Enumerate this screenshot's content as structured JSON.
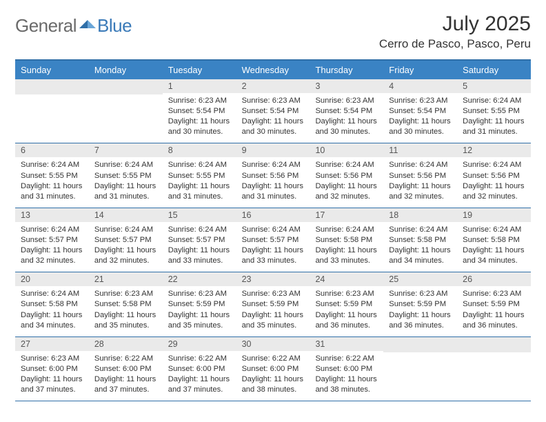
{
  "logo": {
    "text_general": "General",
    "text_blue": "Blue",
    "mark_fill_dark": "#2f6fa8",
    "mark_fill_light": "#6aa6d8"
  },
  "header": {
    "month_title": "July 2025",
    "location": "Cerro de Pasco, Pasco, Peru"
  },
  "colors": {
    "header_bar": "#3a83c4",
    "border": "#2f6fa8",
    "daynum_bg": "#eaeaea",
    "text": "#333333"
  },
  "weekdays": [
    "Sunday",
    "Monday",
    "Tuesday",
    "Wednesday",
    "Thursday",
    "Friday",
    "Saturday"
  ],
  "weeks": [
    [
      null,
      null,
      {
        "n": "1",
        "sunrise": "6:23 AM",
        "sunset": "5:54 PM",
        "daylight": "11 hours and 30 minutes."
      },
      {
        "n": "2",
        "sunrise": "6:23 AM",
        "sunset": "5:54 PM",
        "daylight": "11 hours and 30 minutes."
      },
      {
        "n": "3",
        "sunrise": "6:23 AM",
        "sunset": "5:54 PM",
        "daylight": "11 hours and 30 minutes."
      },
      {
        "n": "4",
        "sunrise": "6:23 AM",
        "sunset": "5:54 PM",
        "daylight": "11 hours and 30 minutes."
      },
      {
        "n": "5",
        "sunrise": "6:24 AM",
        "sunset": "5:55 PM",
        "daylight": "11 hours and 31 minutes."
      }
    ],
    [
      {
        "n": "6",
        "sunrise": "6:24 AM",
        "sunset": "5:55 PM",
        "daylight": "11 hours and 31 minutes."
      },
      {
        "n": "7",
        "sunrise": "6:24 AM",
        "sunset": "5:55 PM",
        "daylight": "11 hours and 31 minutes."
      },
      {
        "n": "8",
        "sunrise": "6:24 AM",
        "sunset": "5:55 PM",
        "daylight": "11 hours and 31 minutes."
      },
      {
        "n": "9",
        "sunrise": "6:24 AM",
        "sunset": "5:56 PM",
        "daylight": "11 hours and 31 minutes."
      },
      {
        "n": "10",
        "sunrise": "6:24 AM",
        "sunset": "5:56 PM",
        "daylight": "11 hours and 32 minutes."
      },
      {
        "n": "11",
        "sunrise": "6:24 AM",
        "sunset": "5:56 PM",
        "daylight": "11 hours and 32 minutes."
      },
      {
        "n": "12",
        "sunrise": "6:24 AM",
        "sunset": "5:56 PM",
        "daylight": "11 hours and 32 minutes."
      }
    ],
    [
      {
        "n": "13",
        "sunrise": "6:24 AM",
        "sunset": "5:57 PM",
        "daylight": "11 hours and 32 minutes."
      },
      {
        "n": "14",
        "sunrise": "6:24 AM",
        "sunset": "5:57 PM",
        "daylight": "11 hours and 32 minutes."
      },
      {
        "n": "15",
        "sunrise": "6:24 AM",
        "sunset": "5:57 PM",
        "daylight": "11 hours and 33 minutes."
      },
      {
        "n": "16",
        "sunrise": "6:24 AM",
        "sunset": "5:57 PM",
        "daylight": "11 hours and 33 minutes."
      },
      {
        "n": "17",
        "sunrise": "6:24 AM",
        "sunset": "5:58 PM",
        "daylight": "11 hours and 33 minutes."
      },
      {
        "n": "18",
        "sunrise": "6:24 AM",
        "sunset": "5:58 PM",
        "daylight": "11 hours and 34 minutes."
      },
      {
        "n": "19",
        "sunrise": "6:24 AM",
        "sunset": "5:58 PM",
        "daylight": "11 hours and 34 minutes."
      }
    ],
    [
      {
        "n": "20",
        "sunrise": "6:24 AM",
        "sunset": "5:58 PM",
        "daylight": "11 hours and 34 minutes."
      },
      {
        "n": "21",
        "sunrise": "6:23 AM",
        "sunset": "5:58 PM",
        "daylight": "11 hours and 35 minutes."
      },
      {
        "n": "22",
        "sunrise": "6:23 AM",
        "sunset": "5:59 PM",
        "daylight": "11 hours and 35 minutes."
      },
      {
        "n": "23",
        "sunrise": "6:23 AM",
        "sunset": "5:59 PM",
        "daylight": "11 hours and 35 minutes."
      },
      {
        "n": "24",
        "sunrise": "6:23 AM",
        "sunset": "5:59 PM",
        "daylight": "11 hours and 36 minutes."
      },
      {
        "n": "25",
        "sunrise": "6:23 AM",
        "sunset": "5:59 PM",
        "daylight": "11 hours and 36 minutes."
      },
      {
        "n": "26",
        "sunrise": "6:23 AM",
        "sunset": "5:59 PM",
        "daylight": "11 hours and 36 minutes."
      }
    ],
    [
      {
        "n": "27",
        "sunrise": "6:23 AM",
        "sunset": "6:00 PM",
        "daylight": "11 hours and 37 minutes."
      },
      {
        "n": "28",
        "sunrise": "6:22 AM",
        "sunset": "6:00 PM",
        "daylight": "11 hours and 37 minutes."
      },
      {
        "n": "29",
        "sunrise": "6:22 AM",
        "sunset": "6:00 PM",
        "daylight": "11 hours and 37 minutes."
      },
      {
        "n": "30",
        "sunrise": "6:22 AM",
        "sunset": "6:00 PM",
        "daylight": "11 hours and 38 minutes."
      },
      {
        "n": "31",
        "sunrise": "6:22 AM",
        "sunset": "6:00 PM",
        "daylight": "11 hours and 38 minutes."
      },
      null,
      null
    ]
  ],
  "labels": {
    "sunrise_prefix": "Sunrise: ",
    "sunset_prefix": "Sunset: ",
    "daylight_prefix": "Daylight: "
  }
}
